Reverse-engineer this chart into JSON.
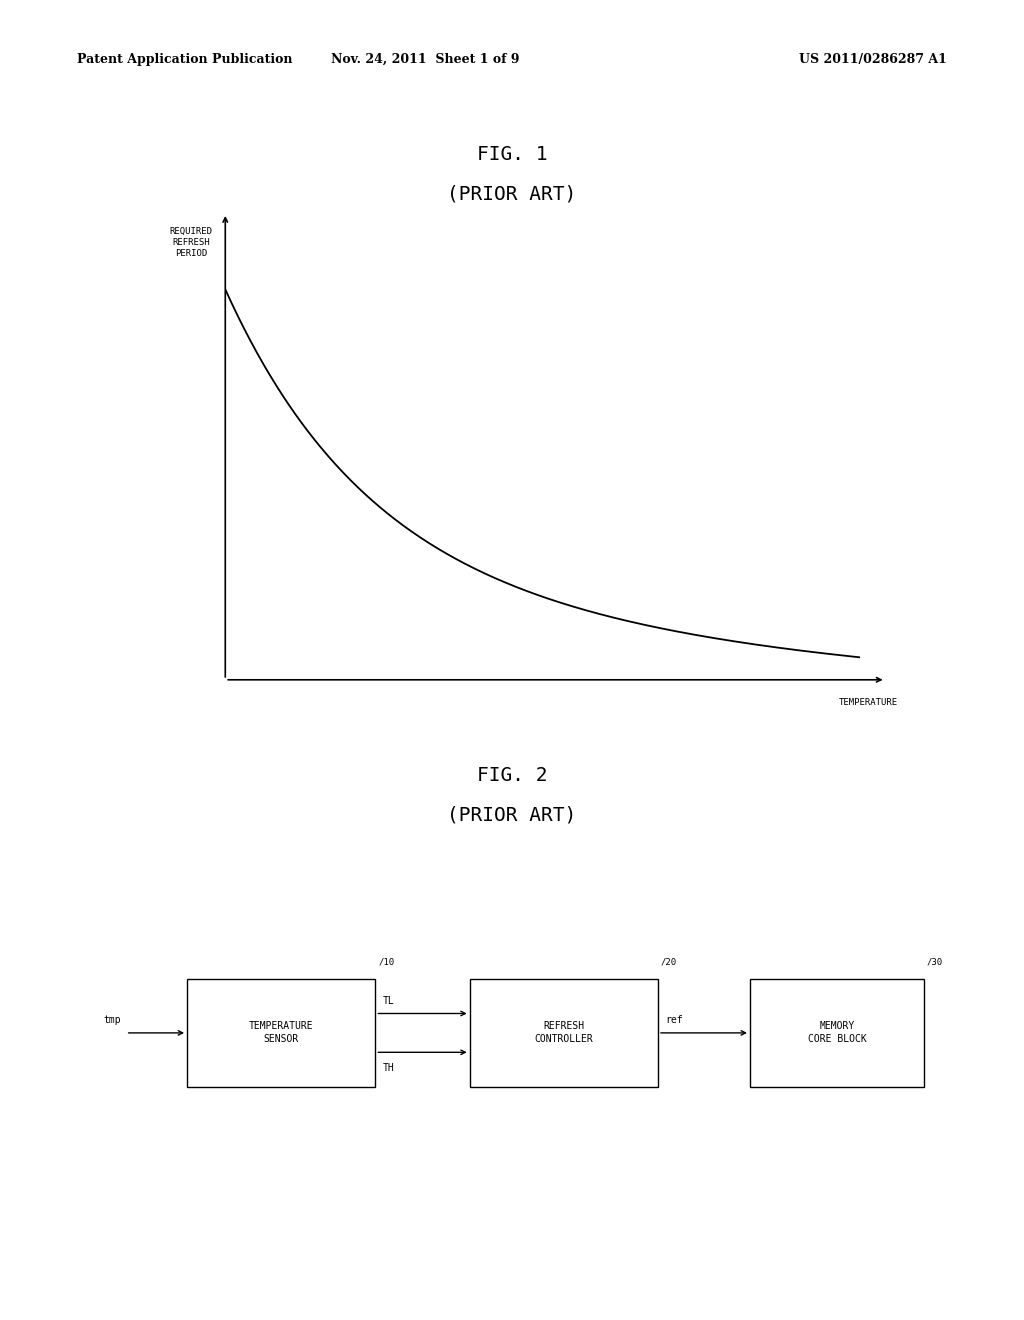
{
  "header_left": "Patent Application Publication",
  "header_mid": "Nov. 24, 2011  Sheet 1 of 9",
  "header_right": "US 2011/0286287 A1",
  "fig1_title": "FIG. 1",
  "fig1_subtitle": "(PRIOR ART)",
  "fig1_ylabel": "REQUIRED\nREFRESH\nPERIOD",
  "fig1_xlabel": "TEMPERATURE",
  "fig2_title": "FIG. 2",
  "fig2_subtitle": "(PRIOR ART)",
  "box1_label": "TEMPERATURE\nSENSOR",
  "box1_num": "10",
  "box2_label": "REFRESH\nCONTROLLER",
  "box2_num": "20",
  "box3_label": "MEMORY\nCORE BLOCK",
  "box3_num": "30",
  "arrow_in_label": "tmp",
  "arrow_tl_label": "TL",
  "arrow_th_label": "TH",
  "arrow_ref_label": "ref",
  "bg_color": "#ffffff",
  "line_color": "#000000",
  "text_color": "#000000",
  "font_size_header": 9,
  "font_size_title": 14,
  "font_size_axis": 6.5,
  "font_size_box": 7,
  "font_size_arrow": 7
}
